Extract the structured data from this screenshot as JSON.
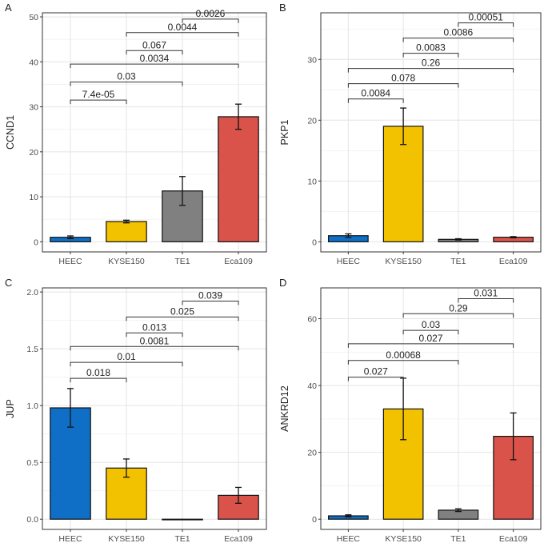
{
  "chart_data": [
    {
      "panel_label": "A",
      "type": "bar",
      "ylabel": "CCND1",
      "ylim": [
        0,
        50
      ],
      "yticks": [
        0,
        10,
        20,
        30,
        40,
        50
      ],
      "yminor": 5,
      "categories": [
        "HEEC",
        "KYSE150",
        "TE1",
        "Eca109"
      ],
      "values": [
        1.0,
        4.5,
        11.3,
        27.8
      ],
      "errors": [
        0.3,
        0.3,
        3.2,
        2.8
      ],
      "colors": [
        "#0f6fc6",
        "#f2c200",
        "#808080",
        "#d9534a"
      ],
      "comparisons": [
        {
          "from": 0,
          "to": 1,
          "label": "7.4e-05",
          "y": 31.5
        },
        {
          "from": 0,
          "to": 2,
          "label": "0.03",
          "y": 35.5
        },
        {
          "from": 0,
          "to": 3,
          "label": "0.0034",
          "y": 39.5
        },
        {
          "from": 1,
          "to": 2,
          "label": "0.067",
          "y": 42.5
        },
        {
          "from": 1,
          "to": 3,
          "label": "0.0044",
          "y": 46.5
        },
        {
          "from": 2,
          "to": 3,
          "label": "0.0026",
          "y": 49.5
        }
      ]
    },
    {
      "panel_label": "B",
      "type": "bar",
      "ylabel": "PKP1",
      "ylim": [
        0,
        37
      ],
      "yticks": [
        0,
        10,
        20,
        30
      ],
      "yminor": 5,
      "categories": [
        "HEEC",
        "KYSE150",
        "TE1",
        "Eca109"
      ],
      "values": [
        1.0,
        19.0,
        0.4,
        0.75
      ],
      "errors": [
        0.3,
        3.0,
        0.1,
        0.1
      ],
      "colors": [
        "#0f6fc6",
        "#f2c200",
        "#808080",
        "#d9534a"
      ],
      "comparisons": [
        {
          "from": 0,
          "to": 1,
          "label": "0.0084",
          "y": 23.5
        },
        {
          "from": 0,
          "to": 2,
          "label": "0.078",
          "y": 26.0
        },
        {
          "from": 0,
          "to": 3,
          "label": "0.26",
          "y": 28.5
        },
        {
          "from": 1,
          "to": 2,
          "label": "0.0083",
          "y": 31.0
        },
        {
          "from": 1,
          "to": 3,
          "label": "0.0086",
          "y": 33.5
        },
        {
          "from": 2,
          "to": 3,
          "label": "0.00051",
          "y": 36.0
        }
      ]
    },
    {
      "panel_label": "C",
      "type": "bar",
      "ylabel": "JUP",
      "ylim": [
        0,
        2.0
      ],
      "yticks": [
        0.0,
        0.5,
        1.0,
        1.5,
        2.0
      ],
      "yminor": 0.25,
      "tick_decimals": 1,
      "categories": [
        "HEEC",
        "KYSE150",
        "TE1",
        "Eca109"
      ],
      "values": [
        0.98,
        0.45,
        0.0,
        0.21
      ],
      "errors": [
        0.17,
        0.08,
        0.0,
        0.07
      ],
      "colors": [
        "#0f6fc6",
        "#f2c200",
        "#808080",
        "#d9534a"
      ],
      "comparisons": [
        {
          "from": 0,
          "to": 1,
          "label": "0.018",
          "y": 1.24
        },
        {
          "from": 0,
          "to": 2,
          "label": "0.01",
          "y": 1.38
        },
        {
          "from": 0,
          "to": 3,
          "label": "0.0081",
          "y": 1.52
        },
        {
          "from": 1,
          "to": 2,
          "label": "0.013",
          "y": 1.64
        },
        {
          "from": 1,
          "to": 3,
          "label": "0.025",
          "y": 1.78
        },
        {
          "from": 2,
          "to": 3,
          "label": "0.039",
          "y": 1.92
        }
      ]
    },
    {
      "panel_label": "D",
      "type": "bar",
      "ylabel": "ANKRD12",
      "ylim": [
        0,
        68
      ],
      "yticks": [
        0,
        20,
        40,
        60
      ],
      "yminor": 10,
      "categories": [
        "HEEC",
        "KYSE150",
        "TE1",
        "Eca109"
      ],
      "values": [
        1.0,
        33.0,
        2.7,
        24.8
      ],
      "errors": [
        0.3,
        9.2,
        0.4,
        7.0
      ],
      "colors": [
        "#0f6fc6",
        "#f2c200",
        "#808080",
        "#d9534a"
      ],
      "comparisons": [
        {
          "from": 0,
          "to": 1,
          "label": "0.027",
          "y": 42.5
        },
        {
          "from": 0,
          "to": 2,
          "label": "0.00068",
          "y": 47.5
        },
        {
          "from": 0,
          "to": 3,
          "label": "0.027",
          "y": 52.5
        },
        {
          "from": 1,
          "to": 2,
          "label": "0.03",
          "y": 56.5
        },
        {
          "from": 1,
          "to": 3,
          "label": "0.29",
          "y": 61.5
        },
        {
          "from": 2,
          "to": 3,
          "label": "0.031",
          "y": 66.0
        }
      ]
    }
  ]
}
